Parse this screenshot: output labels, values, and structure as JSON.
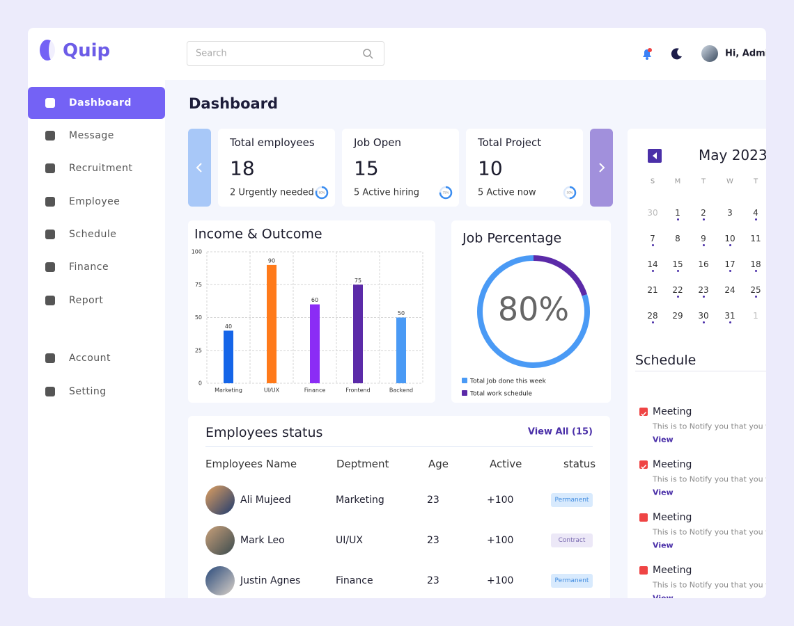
{
  "brand": "Quip",
  "search_placeholder": "Search",
  "user": "Hi, Admin",
  "nav": [
    "Dashboard",
    "Message",
    "Recruitment",
    "Employee",
    "Schedule",
    "Finance",
    "Report",
    "Account",
    "Setting"
  ],
  "page_title": "Dashboard",
  "stats": [
    {
      "title": "Total employees",
      "value": 18,
      "note": "2 Urgently needed",
      "ring": 80,
      "ring_label": "80%"
    },
    {
      "title": "Job Open",
      "value": 15,
      "note": "5 Active hiring",
      "ring": 75,
      "ring_label": "75%"
    },
    {
      "title": "Total Project",
      "value": 10,
      "note": "5 Active now",
      "ring": 50,
      "ring_label": "50%"
    }
  ],
  "chart_data": [
    {
      "type": "bar",
      "title": "Income & Outcome",
      "categories": [
        "Marketing",
        "UI/UX",
        "Finance",
        "Frontend",
        "Backend"
      ],
      "values": [
        40,
        90,
        60,
        75,
        50
      ],
      "colors": [
        "#1565e8",
        "#ff7a1a",
        "#8b2cf5",
        "#5b2aa8",
        "#4a9af5"
      ],
      "ylim": [
        0,
        100
      ],
      "yticks": [
        0,
        25,
        50,
        75,
        100
      ],
      "grid": true
    },
    {
      "type": "donut",
      "title": "Job Percentage",
      "center_label": "80%",
      "categories": [
        "Total Job done this week",
        "Total work schedule"
      ],
      "values": [
        80,
        20
      ],
      "colors": [
        "#4a9af5",
        "#5b2aa8"
      ]
    }
  ],
  "calendar": {
    "month": "May 2023",
    "weekdays": [
      "S",
      "M",
      "T",
      "W",
      "T"
    ],
    "weeks": [
      [
        30,
        1,
        2,
        3,
        4
      ],
      [
        7,
        8,
        9,
        10,
        11
      ],
      [
        14,
        15,
        16,
        17,
        18
      ],
      [
        21,
        22,
        23,
        24,
        25
      ],
      [
        28,
        29,
        30,
        31,
        1
      ]
    ]
  },
  "schedule": {
    "title": "Schedule",
    "items": [
      {
        "title": "Meeting",
        "text": "This is to Notify you that you will",
        "link": "View",
        "checked": true
      },
      {
        "title": "Meeting",
        "text": "This is to Notify you that you will",
        "link": "View",
        "checked": true
      },
      {
        "title": "Meeting",
        "text": "This is to Notify you that you will",
        "link": "View",
        "checked": false
      },
      {
        "title": "Meeting",
        "text": "This is to Notify you that you will",
        "link": "View",
        "checked": false
      }
    ]
  },
  "employees": {
    "title": "Employees status",
    "view_all": "View All (15)",
    "headers": [
      "Employees Name",
      "Deptment",
      "Age",
      "Active",
      "status"
    ],
    "rows": [
      [
        "Ali Mujeed",
        "Marketing",
        23,
        "+100",
        "Permanent"
      ],
      [
        "Mark Leo",
        "UI/UX",
        23,
        "+100",
        "Contract"
      ],
      [
        "Justin Agnes",
        "Finance",
        23,
        "+100",
        "Permanent"
      ]
    ]
  }
}
